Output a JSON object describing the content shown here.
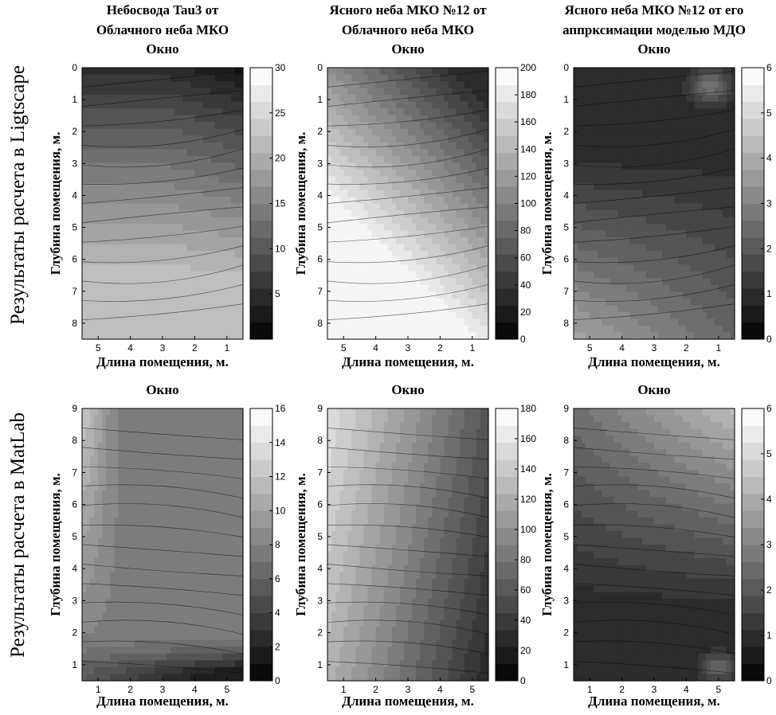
{
  "row_labels": [
    "Результаты расчета в Ligtscape",
    "Результаты расчета в MatLab"
  ],
  "chart_data": [
    {
      "type": "contour",
      "id": "lightscape-cloudy-tau3",
      "title_lines": [
        "Небосвода Tau3 от",
        "Облачного неба МКО"
      ],
      "window_label": "Окно",
      "xlabel": "Длина помещения, м.",
      "ylabel": "Глубина помещения, м.",
      "x_ticks": [
        5,
        4,
        3,
        2,
        1
      ],
      "y_ticks": [
        0,
        1,
        2,
        3,
        4,
        5,
        6,
        7,
        8
      ],
      "x_reversed": true,
      "y_reversed": true,
      "colorbar_ticks": [
        5,
        10,
        15,
        20,
        25,
        30
      ],
      "colorbar_range": [
        0,
        30
      ],
      "grayscale": true,
      "contour_lines": true,
      "legend": "colorbar-right"
    },
    {
      "type": "contour",
      "id": "lightscape-clear12",
      "title_lines": [
        "Ясного неба МКО №12 от",
        "Облачного неба МКО"
      ],
      "window_label": "Окно",
      "xlabel": "Длина помещения, м.",
      "ylabel": "Глубина помещения, м.",
      "x_ticks": [
        5,
        4,
        3,
        2,
        1
      ],
      "y_ticks": [
        0,
        1,
        2,
        3,
        4,
        5,
        6,
        7,
        8
      ],
      "x_reversed": true,
      "y_reversed": true,
      "colorbar_ticks": [
        0,
        20,
        40,
        60,
        80,
        100,
        120,
        140,
        160,
        180,
        200
      ],
      "colorbar_range": [
        0,
        200
      ],
      "grayscale": true,
      "contour_lines": true,
      "legend": "colorbar-right"
    },
    {
      "type": "contour",
      "id": "lightscape-clear12-mdo",
      "title_lines": [
        "Ясного неба МКО №12 от его",
        "аппрксимации моделью МДО"
      ],
      "window_label": "Окно",
      "xlabel": "Длина помещения, м.",
      "ylabel": "Глубина помещения, м.",
      "x_ticks": [
        5,
        4,
        3,
        2,
        1
      ],
      "y_ticks": [
        0,
        1,
        2,
        3,
        4,
        5,
        6,
        7,
        8
      ],
      "x_reversed": true,
      "y_reversed": true,
      "colorbar_ticks": [
        0,
        1,
        2,
        3,
        4,
        5,
        6
      ],
      "colorbar_range": [
        0,
        6
      ],
      "grayscale": true,
      "contour_lines": true,
      "legend": "colorbar-right"
    },
    {
      "type": "contour",
      "id": "matlab-cloudy-tau3",
      "title_lines": [],
      "window_label": "Окно",
      "xlabel": "Длина помещения, м.",
      "ylabel": "Глубина помещения, м.",
      "x_ticks": [
        1,
        2,
        3,
        4,
        5
      ],
      "y_ticks": [
        1,
        2,
        3,
        4,
        5,
        6,
        7,
        8,
        9
      ],
      "x_reversed": false,
      "y_reversed": false,
      "colorbar_ticks": [
        0,
        2,
        4,
        6,
        8,
        10,
        12,
        14,
        16
      ],
      "colorbar_range": [
        0,
        16
      ],
      "grayscale": true,
      "contour_lines": true,
      "legend": "colorbar-right"
    },
    {
      "type": "contour",
      "id": "matlab-clear12",
      "title_lines": [],
      "window_label": "Окно",
      "xlabel": "Длина помещения, м.",
      "ylabel": "Глубина помещения, м.",
      "x_ticks": [
        1,
        2,
        3,
        4,
        5
      ],
      "y_ticks": [
        1,
        2,
        3,
        4,
        5,
        6,
        7,
        8,
        9
      ],
      "x_reversed": false,
      "y_reversed": false,
      "colorbar_ticks": [
        0,
        20,
        40,
        60,
        80,
        100,
        120,
        140,
        160,
        180
      ],
      "colorbar_range": [
        0,
        180
      ],
      "grayscale": true,
      "contour_lines": true,
      "legend": "colorbar-right"
    },
    {
      "type": "contour",
      "id": "matlab-clear12-mdo",
      "title_lines": [],
      "window_label": "Окно",
      "xlabel": "Длина помещения, м.",
      "ylabel": "Глубина помещения, м.",
      "x_ticks": [
        1,
        2,
        3,
        4,
        5
      ],
      "y_ticks": [
        1,
        2,
        3,
        4,
        5,
        6,
        7,
        8,
        9
      ],
      "x_reversed": false,
      "y_reversed": false,
      "colorbar_ticks": [
        0,
        1,
        2,
        3,
        4,
        5,
        6
      ],
      "colorbar_range": [
        0,
        6
      ],
      "grayscale": true,
      "contour_lines": true,
      "legend": "colorbar-right"
    }
  ]
}
